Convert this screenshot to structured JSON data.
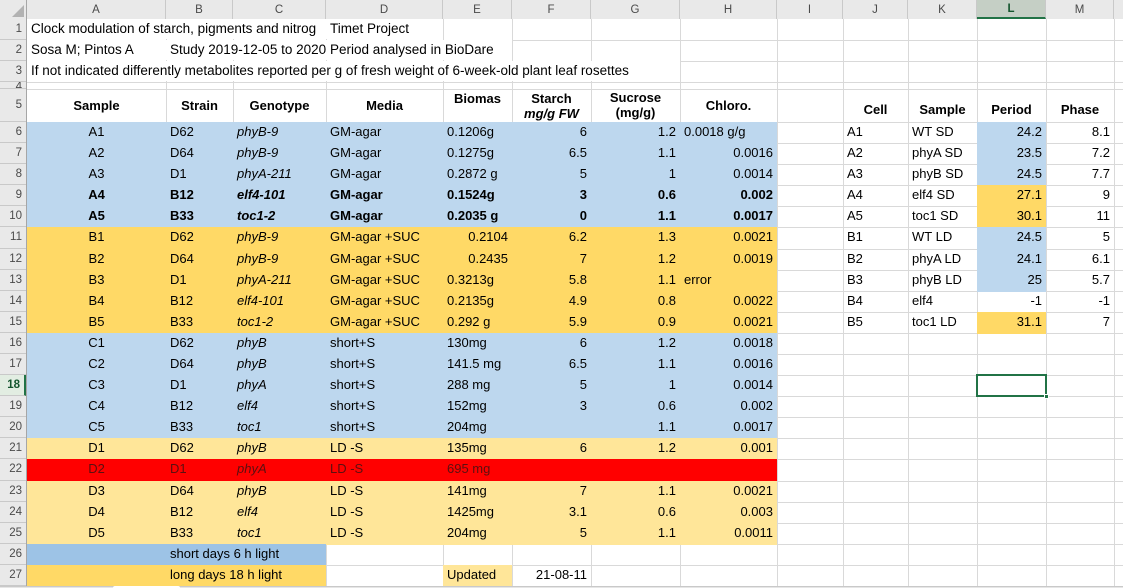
{
  "sheet": {
    "column_letters": [
      "A",
      "B",
      "C",
      "D",
      "E",
      "F",
      "G",
      "H",
      "I",
      "J",
      "K",
      "L",
      "M"
    ],
    "row_count": 27,
    "selected": {
      "cell_ref": "L18",
      "column": "L",
      "row": "18"
    },
    "colors": {
      "band_blue": "#BDD7EE",
      "band_gold": "#FFD966",
      "band_pale_yellow": "#FFE699",
      "band_red": "#FF0000",
      "band_blue_dark": "#9DC3E6",
      "red_row_text": "#5C1010",
      "selection_green": "#217346",
      "header_selected_bg": "#C5CFC5",
      "header_selected_text": "#15562F"
    },
    "doc_cells": [
      {
        "ref": "A1",
        "span": 3,
        "text": "Clock modulation of starch, pigments and nitrog"
      },
      {
        "ref": "D1",
        "span": 1,
        "text": "Timet Project"
      },
      {
        "ref": "A2",
        "span": 1,
        "text": "Sosa M; Pintos A"
      },
      {
        "ref": "B2",
        "span": 2,
        "text": "Study 2019-12-05 to 2020("
      },
      {
        "ref": "D2",
        "span": 2,
        "text": "Period analysed in BioDare"
      },
      {
        "ref": "A3",
        "span": 7,
        "text": "If not indicated differently metabolites reported per g of fresh weight of 6-week-old plant leaf rosettes"
      }
    ],
    "table_headers": {
      "sample": "Sample",
      "strain": "Strain",
      "genotype": "Genotype",
      "media": "Media",
      "biomass": "Biomas",
      "starch_line1": "Starch",
      "starch_line2": "mg/g FW",
      "sucrose_line1": "Sucrose",
      "sucrose_line2": "(mg/g)",
      "chloro": "Chloro."
    },
    "period_headers": {
      "cell": "Cell",
      "sample": "Sample",
      "period": "Period",
      "phase": "Phase"
    },
    "main_rows": [
      {
        "r": 6,
        "sample": "A1",
        "strain": "D62",
        "genotype": "phyB-9",
        "media": "GM-agar",
        "biomass": "0.1206g",
        "starch": "6",
        "sucrose": "1.2",
        "chloro": "0.0018 g/g",
        "band": "blue",
        "bold": false,
        "c_align": "left"
      },
      {
        "r": 7,
        "sample": "A2",
        "strain": "D64",
        "genotype": "phyB-9",
        "media": "GM-agar",
        "biomass": "0.1275g",
        "starch": "6.5",
        "sucrose": "1.1",
        "chloro": "0.0016",
        "band": "blue",
        "bold": false
      },
      {
        "r": 8,
        "sample": "A3",
        "strain": "D1",
        "genotype": "phyA-211",
        "media": "GM-agar",
        "biomass": "0.2872 g",
        "starch": "5",
        "sucrose": "1",
        "chloro": "0.0014",
        "band": "blue",
        "bold": false
      },
      {
        "r": 9,
        "sample": "A4",
        "strain": "B12",
        "genotype": "elf4-101",
        "media": "GM-agar",
        "biomass": "0.1524g",
        "starch": "3",
        "sucrose": "0.6",
        "chloro": "0.002",
        "band": "blue",
        "bold": true
      },
      {
        "r": 10,
        "sample": "A5",
        "strain": "B33",
        "genotype": "toc1-2",
        "media": "GM-agar",
        "biomass": "0.2035 g",
        "starch": "0",
        "sucrose": "1.1",
        "chloro": "0.0017",
        "band": "blue",
        "bold": true
      },
      {
        "r": 11,
        "sample": "B1",
        "strain": "D62",
        "genotype": "phyB-9",
        "media": "GM-agar +SUC",
        "biomass": "0.2104",
        "starch": "6.2",
        "sucrose": "1.3",
        "chloro": "0.0021",
        "band": "gold",
        "bold": false,
        "b_align": "right"
      },
      {
        "r": 12,
        "sample": "B2",
        "strain": "D64",
        "genotype": "phyB-9",
        "media": "GM-agar +SUC",
        "biomass": "0.2435",
        "starch": "7",
        "sucrose": "1.2",
        "chloro": "0.0019",
        "band": "gold",
        "bold": false,
        "b_align": "right"
      },
      {
        "r": 13,
        "sample": "B3",
        "strain": "D1",
        "genotype": "phyA-211",
        "media": "GM-agar +SUC",
        "biomass": "0.3213g",
        "starch": "5.8",
        "sucrose": "1.1",
        "chloro": "error",
        "band": "gold",
        "bold": false,
        "c_align": "left"
      },
      {
        "r": 14,
        "sample": "B4",
        "strain": "B12",
        "genotype": "elf4-101",
        "media": "GM-agar +SUC",
        "biomass": "0.2135g",
        "starch": "4.9",
        "sucrose": "0.8",
        "chloro": "0.0022",
        "band": "gold",
        "bold": false
      },
      {
        "r": 15,
        "sample": "B5",
        "strain": "B33",
        "genotype": "toc1-2",
        "media": "GM-agar +SUC",
        "biomass": "0.292 g",
        "starch": "5.9",
        "sucrose": "0.9",
        "chloro": "0.0021",
        "band": "gold",
        "bold": false
      },
      {
        "r": 16,
        "sample": "C1",
        "strain": "D62",
        "genotype": "phyB",
        "media": "short+S",
        "biomass": "130mg",
        "starch": "6",
        "sucrose": "1.2",
        "chloro": "0.0018",
        "band": "blue",
        "bold": false
      },
      {
        "r": 17,
        "sample": "C2",
        "strain": "D64",
        "genotype": "phyB",
        "media": "short+S",
        "biomass": "141.5 mg",
        "starch": "6.5",
        "sucrose": "1.1",
        "chloro": "0.0016",
        "band": "blue",
        "bold": false
      },
      {
        "r": 18,
        "sample": "C3",
        "strain": "D1",
        "genotype": "phyA",
        "media": "short+S",
        "biomass": "288 mg",
        "starch": "5",
        "sucrose": "1",
        "chloro": "0.0014",
        "band": "blue",
        "bold": false
      },
      {
        "r": 19,
        "sample": "C4",
        "strain": "B12",
        "genotype": "elf4",
        "media": "short+S",
        "biomass": "152mg",
        "starch": "3",
        "sucrose": "0.6",
        "chloro": "0.002",
        "band": "blue",
        "bold": false
      },
      {
        "r": 20,
        "sample": "C5",
        "strain": "B33",
        "genotype": "toc1",
        "media": "short+S",
        "biomass": "204mg",
        "starch": "",
        "sucrose": "1.1",
        "chloro": "0.0017",
        "band": "blue",
        "bold": false
      },
      {
        "r": 21,
        "sample": "D1",
        "strain": "D62",
        "genotype": "phyB",
        "media": "LD -S",
        "biomass": "135mg",
        "starch": "6",
        "sucrose": "1.2",
        "chloro": "0.001",
        "band": "pale",
        "bold": false
      },
      {
        "r": 22,
        "sample": "D2",
        "strain": "D1",
        "genotype": "phyA",
        "media": "LD -S",
        "biomass": "695 mg",
        "starch": "",
        "sucrose": "",
        "chloro": "",
        "band": "red",
        "bold": false
      },
      {
        "r": 23,
        "sample": "D3",
        "strain": "D64",
        "genotype": "phyB",
        "media": "LD -S",
        "biomass": "141mg",
        "starch": "7",
        "sucrose": "1.1",
        "chloro": "0.0021",
        "band": "pale",
        "bold": false
      },
      {
        "r": 24,
        "sample": "D4",
        "strain": "B12",
        "genotype": "elf4",
        "media": "LD -S",
        "biomass": "1425mg",
        "starch": "3.1",
        "sucrose": "0.6",
        "chloro": "0.003",
        "band": "pale",
        "bold": false
      },
      {
        "r": 25,
        "sample": "D5",
        "strain": "B33",
        "genotype": "toc1",
        "media": "LD -S",
        "biomass": "204mg",
        "starch": "5",
        "sucrose": "1.1",
        "chloro": "0.0011",
        "band": "pale",
        "bold": false
      }
    ],
    "period_rows": [
      {
        "r": 6,
        "cell": "A1",
        "sample": "WT SD",
        "period": "24.2",
        "phase": "8.1",
        "fill": "blue"
      },
      {
        "r": 7,
        "cell": "A2",
        "sample": "phyA SD",
        "period": "23.5",
        "phase": "7.2",
        "fill": "blue"
      },
      {
        "r": 8,
        "cell": "A3",
        "sample": "phyB SD",
        "period": "24.5",
        "phase": "7.7",
        "fill": "blue"
      },
      {
        "r": 9,
        "cell": "A4",
        "sample": "elf4 SD",
        "period": "27.1",
        "phase": "9",
        "fill": "gold"
      },
      {
        "r": 10,
        "cell": "A5",
        "sample": "toc1 SD",
        "period": "30.1",
        "phase": "11",
        "fill": "gold"
      },
      {
        "r": 11,
        "cell": "B1",
        "sample": "WT LD",
        "period": "24.5",
        "phase": "5",
        "fill": "blue"
      },
      {
        "r": 12,
        "cell": "B2",
        "sample": "phyA LD",
        "period": "24.1",
        "phase": "6.1",
        "fill": "blue"
      },
      {
        "r": 13,
        "cell": "B3",
        "sample": "phyB LD",
        "period": "25",
        "phase": "5.7",
        "fill": "blue"
      },
      {
        "r": 14,
        "cell": "B4",
        "sample": "elf4",
        "period": "-1",
        "phase": "-1",
        "fill": "none"
      },
      {
        "r": 15,
        "cell": "B5",
        "sample": "toc1 LD",
        "period": "31.1",
        "phase": "7",
        "fill": "gold"
      }
    ],
    "legend_rows": [
      {
        "r": 26,
        "text": "short days 6 h light",
        "fill": "blue_dark"
      },
      {
        "r": 27,
        "text": "long days 18 h light",
        "fill": "gold"
      }
    ],
    "footer": {
      "updated_label": "Updated",
      "updated_date": "21-08-11"
    }
  }
}
